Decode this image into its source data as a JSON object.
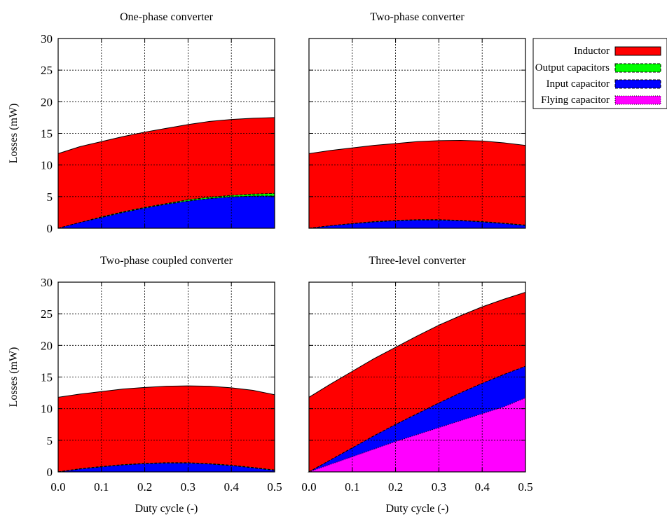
{
  "chart_data": [
    {
      "type": "area",
      "title": "One-phase converter",
      "xlabel": "",
      "ylabel": "Losses (mW)",
      "xlim": [
        0,
        0.5
      ],
      "ylim": [
        0,
        30
      ],
      "x": [
        0,
        0.05,
        0.1,
        0.15,
        0.2,
        0.25,
        0.3,
        0.35,
        0.4,
        0.45,
        0.5
      ],
      "series": [
        {
          "name": "Inductor",
          "values": [
            11.8,
            12.9,
            13.7,
            14.5,
            15.2,
            15.8,
            16.4,
            16.9,
            17.2,
            17.4,
            17.5
          ]
        },
        {
          "name": "Output capacitors",
          "values": [
            0,
            0.9,
            1.8,
            2.6,
            3.3,
            3.9,
            4.5,
            4.9,
            5.2,
            5.4,
            5.5
          ]
        },
        {
          "name": "Input capacitor",
          "values": [
            0,
            0.9,
            1.7,
            2.5,
            3.2,
            3.8,
            4.3,
            4.7,
            4.95,
            5.1,
            5.1
          ]
        }
      ],
      "xticks": [
        "",
        "",
        "",
        "",
        "",
        ""
      ],
      "yticks": [
        "0",
        "5",
        "10",
        "15",
        "20",
        "25",
        "30"
      ]
    },
    {
      "type": "area",
      "title": "Two-phase converter",
      "xlabel": "",
      "ylabel": "",
      "xlim": [
        0,
        0.5
      ],
      "ylim": [
        0,
        30
      ],
      "x": [
        0,
        0.05,
        0.1,
        0.15,
        0.2,
        0.25,
        0.3,
        0.35,
        0.4,
        0.45,
        0.5
      ],
      "series": [
        {
          "name": "Inductor",
          "values": [
            11.8,
            12.3,
            12.7,
            13.1,
            13.4,
            13.7,
            13.85,
            13.9,
            13.8,
            13.5,
            13.1
          ]
        },
        {
          "name": "Output capacitors",
          "values": [
            0,
            0.4,
            0.75,
            1.05,
            1.25,
            1.35,
            1.35,
            1.25,
            1.05,
            0.8,
            0.5
          ]
        },
        {
          "name": "Input capacitor",
          "values": [
            0,
            0.4,
            0.72,
            1.0,
            1.2,
            1.3,
            1.3,
            1.2,
            1.0,
            0.75,
            0.45
          ]
        }
      ],
      "xticks": [
        "",
        "",
        "",
        "",
        "",
        ""
      ],
      "yticks": [
        "",
        "",
        "",
        "",
        "",
        "",
        ""
      ]
    },
    {
      "type": "area",
      "title": "Two-phase coupled converter",
      "xlabel": "Duty cycle (-)",
      "ylabel": "Losses (mW)",
      "xlim": [
        0,
        0.5
      ],
      "ylim": [
        0,
        30
      ],
      "x": [
        0,
        0.05,
        0.1,
        0.15,
        0.2,
        0.25,
        0.3,
        0.35,
        0.4,
        0.45,
        0.5
      ],
      "series": [
        {
          "name": "Inductor",
          "values": [
            11.8,
            12.3,
            12.7,
            13.1,
            13.35,
            13.55,
            13.6,
            13.55,
            13.3,
            12.9,
            12.2
          ]
        },
        {
          "name": "Output capacitors",
          "values": [
            0,
            0.5,
            0.85,
            1.15,
            1.35,
            1.45,
            1.45,
            1.3,
            1.05,
            0.7,
            0.3
          ]
        },
        {
          "name": "Input capacitor",
          "values": [
            0,
            0.45,
            0.8,
            1.1,
            1.3,
            1.4,
            1.4,
            1.25,
            1.0,
            0.65,
            0.25
          ]
        }
      ],
      "xticks": [
        "0.0",
        "0.1",
        "0.2",
        "0.3",
        "0.4",
        "0.5"
      ],
      "yticks": [
        "0",
        "5",
        "10",
        "15",
        "20",
        "25",
        "30"
      ]
    },
    {
      "type": "area",
      "title": "Three-level converter",
      "xlabel": "Duty cycle (-)",
      "ylabel": "",
      "xlim": [
        0,
        0.5
      ],
      "ylim": [
        0,
        30
      ],
      "x": [
        0,
        0.05,
        0.1,
        0.15,
        0.2,
        0.25,
        0.3,
        0.35,
        0.4,
        0.45,
        0.5
      ],
      "series": [
        {
          "name": "Inductor",
          "values": [
            11.8,
            13.9,
            15.9,
            17.9,
            19.7,
            21.5,
            23.2,
            24.7,
            26.1,
            27.3,
            28.4
          ]
        },
        {
          "name": "Output capacitors",
          "values": [
            0,
            1.9,
            3.8,
            5.7,
            7.5,
            9.2,
            10.9,
            12.5,
            14.0,
            15.4,
            16.7
          ]
        },
        {
          "name": "Input capacitor",
          "values": [
            0,
            1.9,
            3.8,
            5.7,
            7.5,
            9.2,
            10.9,
            12.5,
            14.0,
            15.4,
            16.7
          ]
        },
        {
          "name": "Flying capacitor",
          "values": [
            0,
            1.2,
            2.4,
            3.6,
            4.8,
            5.9,
            7.0,
            8.1,
            9.2,
            10.3,
            11.7
          ]
        }
      ],
      "xticks": [
        "0.0",
        "0.1",
        "0.2",
        "0.3",
        "0.4",
        "0.5"
      ],
      "yticks": [
        "",
        "",
        "",
        "",
        "",
        "",
        ""
      ]
    }
  ],
  "legend": {
    "placement": "top-right",
    "entries": [
      {
        "label": "Inductor",
        "color": "#ff0000"
      },
      {
        "label": "Output capacitors",
        "color": "#00ff00"
      },
      {
        "label": "Input capacitor",
        "color": "#0000ff"
      },
      {
        "label": "Flying capacitor",
        "color": "#ff00ff"
      }
    ]
  },
  "colors": {
    "inductor": "#ff0000",
    "output": "#00ff00",
    "input": "#0000ff",
    "flying": "#ff00ff",
    "stroke": "#000000"
  },
  "grid": true
}
